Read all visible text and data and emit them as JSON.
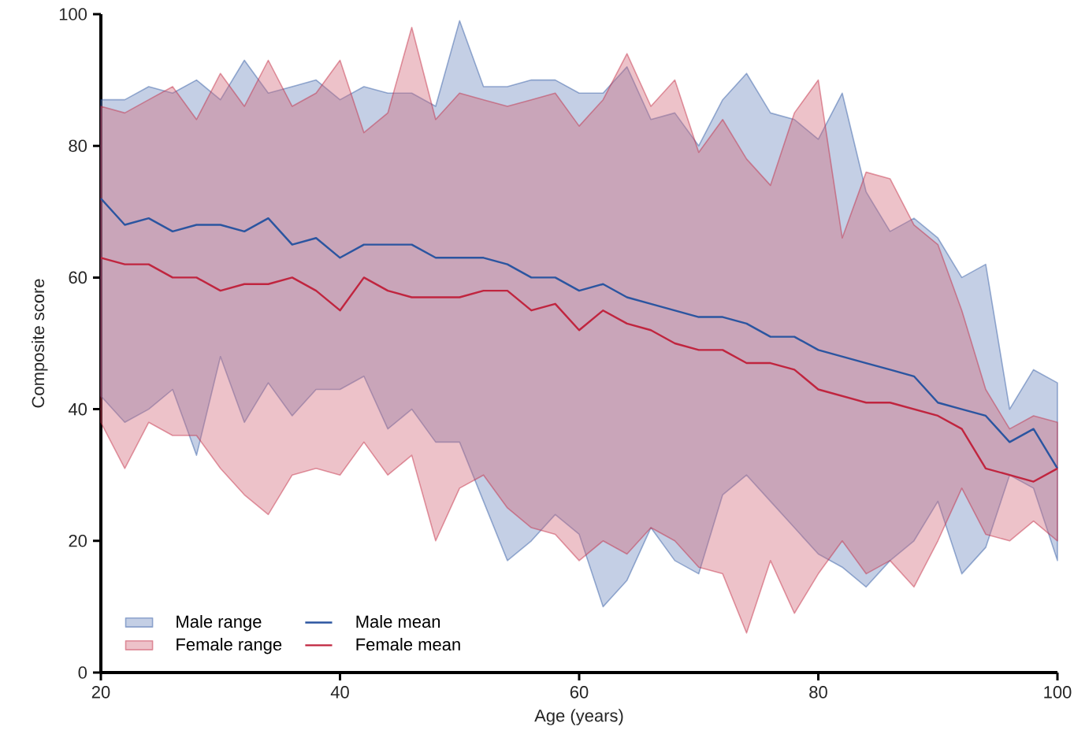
{
  "chart_data": {
    "type": "line",
    "xlabel": "Age (years)",
    "ylabel": "Composite score",
    "annotations": [
      "Male range",
      "Female range"
    ],
    "x": [
      20,
      22,
      24,
      26,
      28,
      30,
      32,
      34,
      36,
      38,
      40,
      42,
      44,
      46,
      48,
      50,
      52,
      54,
      56,
      58,
      60,
      62,
      64,
      66,
      68,
      70,
      72,
      74,
      76,
      78,
      80,
      82,
      84,
      86,
      88,
      90,
      92,
      94,
      96,
      98,
      100
    ],
    "series": [
      {
        "name": "Male mean",
        "type": "line",
        "color": "#2b55a0",
        "values": [
          72,
          68,
          69,
          67,
          68,
          68,
          67,
          69,
          65,
          66,
          63,
          65,
          65,
          65,
          63,
          63,
          63,
          62,
          60,
          60,
          58,
          59,
          57,
          56,
          55,
          54,
          54,
          53,
          51,
          51,
          49,
          48,
          47,
          46,
          45,
          41,
          40,
          39,
          35,
          37,
          31
        ],
        "upper": [
          87,
          87,
          89,
          88,
          90,
          87,
          93,
          88,
          89,
          90,
          87,
          89,
          88,
          88,
          86,
          99,
          89,
          89,
          90,
          90,
          88,
          88,
          92,
          84,
          85,
          80,
          87,
          91,
          85,
          84,
          81,
          88,
          73,
          67,
          69,
          66,
          60,
          62,
          40,
          46,
          44
        ],
        "lower": [
          42,
          38,
          40,
          43,
          33,
          48,
          38,
          44,
          39,
          43,
          43,
          45,
          37,
          40,
          35,
          35,
          26,
          17,
          20,
          24,
          21,
          10,
          14,
          22,
          17,
          15,
          27,
          30,
          26,
          22,
          18,
          16,
          13,
          17,
          20,
          26,
          15,
          19,
          30,
          28,
          17
        ]
      },
      {
        "name": "Female mean",
        "type": "line",
        "color": "#c0253f",
        "values": [
          63,
          62,
          62,
          60,
          60,
          58,
          59,
          59,
          60,
          58,
          55,
          60,
          58,
          57,
          57,
          57,
          58,
          58,
          55,
          56,
          52,
          55,
          53,
          52,
          50,
          49,
          49,
          47,
          47,
          46,
          43,
          42,
          41,
          41,
          40,
          39,
          37,
          31,
          30,
          29,
          31
        ],
        "upper": [
          86,
          85,
          87,
          89,
          84,
          91,
          86,
          93,
          86,
          88,
          93,
          82,
          85,
          98,
          84,
          88,
          87,
          86,
          87,
          88,
          83,
          87,
          94,
          86,
          90,
          79,
          84,
          78,
          74,
          85,
          90,
          66,
          76,
          75,
          68,
          65,
          55,
          43,
          37,
          39,
          38
        ],
        "lower": [
          38,
          31,
          38,
          36,
          36,
          31,
          27,
          24,
          30,
          31,
          30,
          35,
          30,
          33,
          20,
          28,
          30,
          25,
          22,
          21,
          17,
          20,
          18,
          22,
          20,
          16,
          15,
          6,
          17,
          9,
          15,
          20,
          15,
          17,
          13,
          20,
          28,
          21,
          20,
          23,
          20
        ]
      }
    ],
    "xlim": [
      20,
      100
    ],
    "ylim": [
      0,
      100
    ],
    "xticks": [
      20,
      40,
      60,
      80,
      100
    ],
    "yticks": [
      0,
      20,
      40,
      60,
      80,
      100
    ],
    "legend": "bottom left"
  }
}
